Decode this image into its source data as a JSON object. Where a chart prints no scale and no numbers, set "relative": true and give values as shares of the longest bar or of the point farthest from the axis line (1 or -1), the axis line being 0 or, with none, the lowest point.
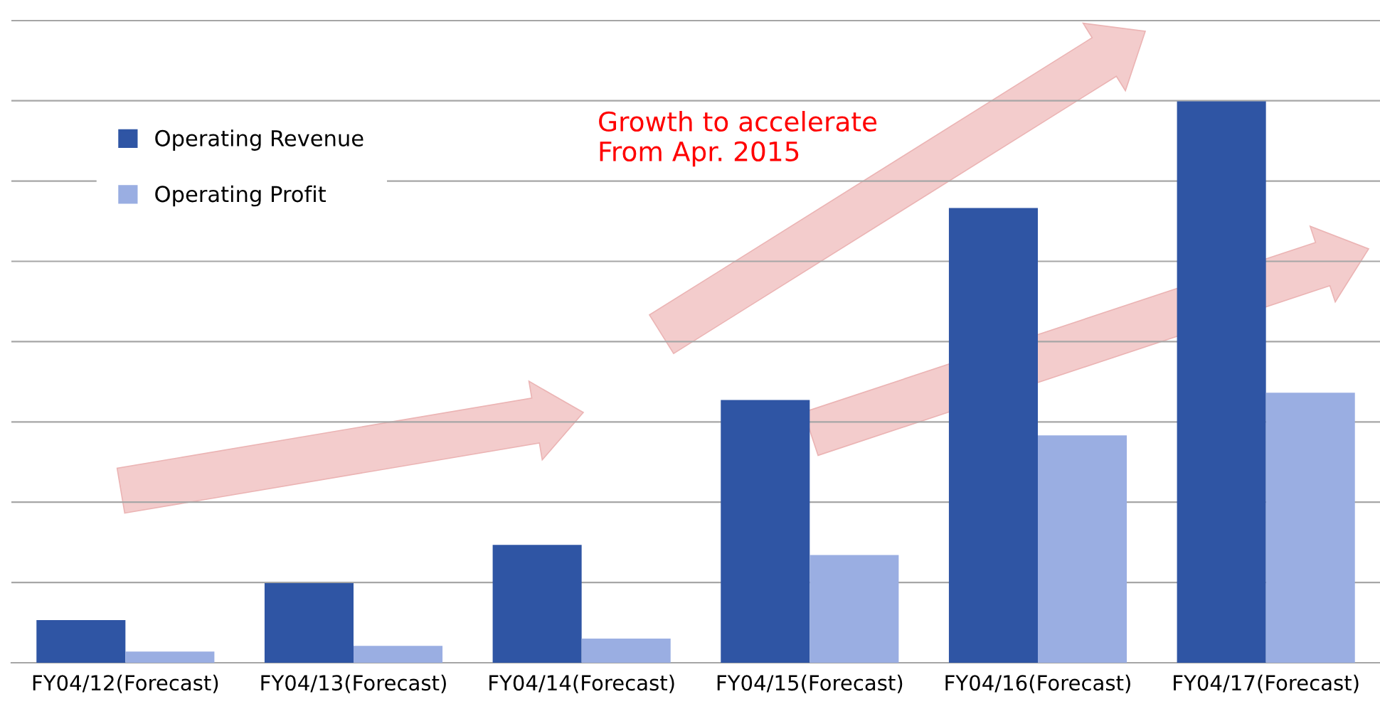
{
  "chart_data": {
    "type": "bar",
    "relative": true,
    "grid": "y",
    "legend": "top left",
    "categories": [
      "FY04/12(Forecast)",
      "FY04/13(Forecast)",
      "FY04/14(Forecast)",
      "FY04/15(Forecast)",
      "FY04/16(Forecast)",
      "FY04/17(Forecast)"
    ],
    "series": [
      {
        "name": "Operating Revenue",
        "color": "#2f55a4",
        "values": [
          0.076,
          0.142,
          0.21,
          0.468,
          0.81,
          1
        ]
      },
      {
        "name": "Operating Profit",
        "color": "#9aaee2",
        "values": [
          0.02,
          0.03,
          0.043,
          0.192,
          0.405,
          0.481
        ]
      }
    ],
    "annotations": [
      "Growth to accelerate\nFrom Apr. 2015"
    ]
  }
}
